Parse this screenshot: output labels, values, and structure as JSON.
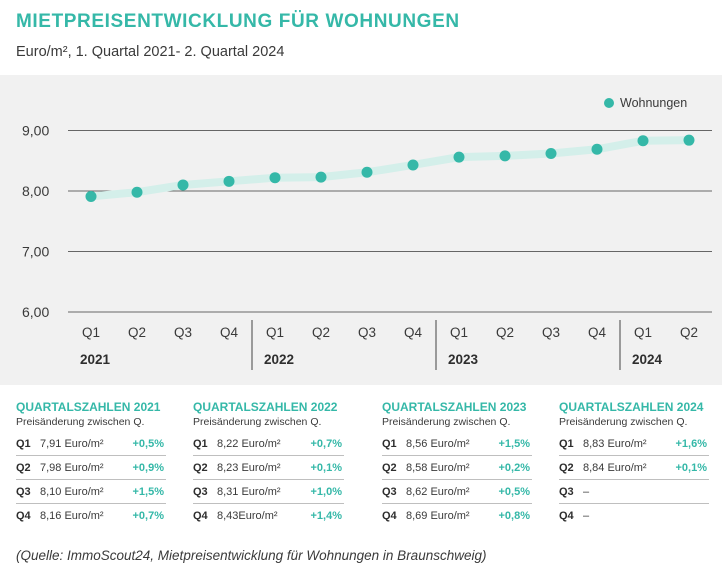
{
  "title": "MIETPREISENTWICKLUNG FÜR WOHNUNGEN",
  "subtitle": "Euro/m², 1. Quartal 2021- 2. Quartal 2024",
  "colors": {
    "accent": "#35b8a8",
    "line_band": "#d4efea",
    "panel_bg": "#f1f1f1",
    "grid": "#666666"
  },
  "chart_data": {
    "type": "line",
    "title": "MIETPREISENTWICKLUNG FÜR WOHNUNGEN",
    "subtitle": "Euro/m², 1. Quartal 2021- 2. Quartal 2024",
    "categories": [
      "Q1",
      "Q2",
      "Q3",
      "Q4",
      "Q1",
      "Q2",
      "Q3",
      "Q4",
      "Q1",
      "Q2",
      "Q3",
      "Q4",
      "Q1",
      "Q2"
    ],
    "year_groups": [
      {
        "label": "2021",
        "count": 4
      },
      {
        "label": "2022",
        "count": 4
      },
      {
        "label": "2023",
        "count": 4
      },
      {
        "label": "2024",
        "count": 2
      }
    ],
    "series": [
      {
        "name": "Wohnungen",
        "values": [
          7.91,
          7.98,
          8.1,
          8.16,
          8.22,
          8.23,
          8.31,
          8.43,
          8.56,
          8.58,
          8.62,
          8.69,
          8.83,
          8.84
        ]
      }
    ],
    "y_ticks": [
      "6,00",
      "7,00",
      "8,00",
      "9,00"
    ],
    "ylim": [
      6,
      10
    ],
    "legend": "top-right",
    "grid": true
  },
  "quarters": [
    {
      "heading": "QUARTALSZAHLEN 2021",
      "sub": "Preisänderung zwischen Q.",
      "rows": [
        {
          "q": "Q1",
          "price": "7,91 Euro/m²",
          "change": "+0,5%"
        },
        {
          "q": "Q2",
          "price": "7,98 Euro/m²",
          "change": "+0,9%"
        },
        {
          "q": "Q3",
          "price": "8,10 Euro/m²",
          "change": "+1,5%"
        },
        {
          "q": "Q4",
          "price": "8,16 Euro/m²",
          "change": "+0,7%"
        }
      ]
    },
    {
      "heading": "QUARTALSZAHLEN 2022",
      "sub": "Preisänderung zwischen Q.",
      "rows": [
        {
          "q": "Q1",
          "price": "8,22 Euro/m²",
          "change": "+0,7%"
        },
        {
          "q": "Q2",
          "price": "8,23 Euro/m²",
          "change": "+0,1%"
        },
        {
          "q": "Q3",
          "price": "8,31 Euro/m²",
          "change": "+1,0%"
        },
        {
          "q": "Q4",
          "price": "8,43Euro/m²",
          "change": "+1,4%"
        }
      ]
    },
    {
      "heading": "QUARTALSZAHLEN 2023",
      "sub": "Preisänderung zwischen Q.",
      "rows": [
        {
          "q": "Q1",
          "price": "8,56 Euro/m²",
          "change": "+1,5%"
        },
        {
          "q": "Q2",
          "price": "8,58 Euro/m²",
          "change": "+0,2%"
        },
        {
          "q": "Q3",
          "price": "8,62 Euro/m²",
          "change": "+0,5%"
        },
        {
          "q": "Q4",
          "price": "8,69 Euro/m²",
          "change": "+0,8%"
        }
      ]
    },
    {
      "heading": "QUARTALSZAHLEN 2024",
      "sub": "Preisänderung zwischen Q.",
      "rows": [
        {
          "q": "Q1",
          "price": "8,83 Euro/m²",
          "change": "+1,6%"
        },
        {
          "q": "Q2",
          "price": "8,84 Euro/m²",
          "change": "+0,1%"
        },
        {
          "q": "Q3",
          "price": "–",
          "change": ""
        },
        {
          "q": "Q4",
          "price": "–",
          "change": ""
        }
      ]
    }
  ],
  "source": "(Quelle: ImmoScout24, Mietpreisentwicklung für Wohnungen in Braunschweig)"
}
